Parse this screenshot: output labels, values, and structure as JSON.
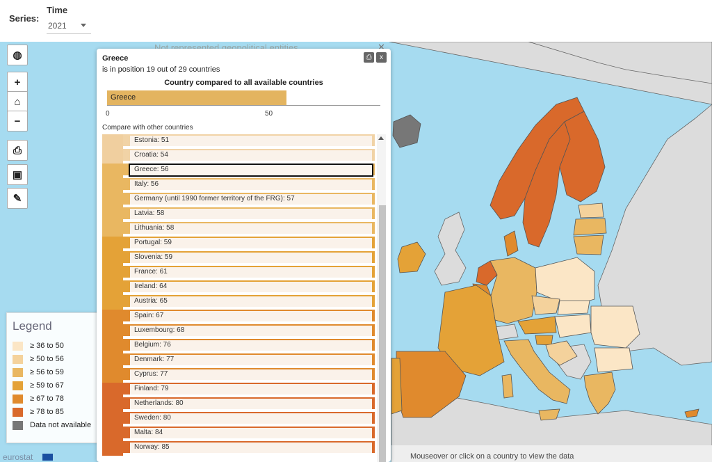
{
  "controls": {
    "series_label": "Series:",
    "time_label": "Time",
    "time_value": "2021"
  },
  "map": {
    "top_note": "Not represented geopolitical entities",
    "footer_note": "Mouseover or click on a country to view the data",
    "brand": "eurostat",
    "colors": {
      "sea": "#a6dbf0",
      "no_data": "#777777",
      "non_eu": "#dcdcdc"
    }
  },
  "tools": [
    {
      "name": "globe-icon",
      "glyph": "◍"
    },
    {
      "name": "zoom-in-icon",
      "glyph": "+"
    },
    {
      "name": "home-icon",
      "glyph": "⌂"
    },
    {
      "name": "zoom-out-icon",
      "glyph": "−"
    },
    {
      "name": "print-icon",
      "glyph": "⎙"
    },
    {
      "name": "image-icon",
      "glyph": "▣"
    },
    {
      "name": "brush-icon",
      "glyph": "✎"
    }
  ],
  "legend": {
    "title": "Legend",
    "items": [
      {
        "label": "≥ 36 to 50",
        "color": "#fbe6c6"
      },
      {
        "label": "≥ 50 to 56",
        "color": "#f4d29c"
      },
      {
        "label": "≥ 56 to 59",
        "color": "#e9b761"
      },
      {
        "label": "≥ 59 to 67",
        "color": "#e4a237"
      },
      {
        "label": "≥ 67 to 78",
        "color": "#e08a2d"
      },
      {
        "label": "≥ 78 to 85",
        "color": "#d9692b"
      },
      {
        "label": "Data not available",
        "color": "#777777"
      }
    ]
  },
  "panel": {
    "title": "Greece",
    "subtitle": "is in position 19 out of 29 countries",
    "compare_title": "Country compared to all available countries",
    "selected_country": "Greece",
    "selected_value": 56,
    "axis_ticks": [
      "0",
      "50"
    ],
    "compare_label": "Compare with other countries",
    "buttons": {
      "print": "⎙",
      "close": "x"
    }
  },
  "ranking": [
    {
      "label": "Estonia: 51",
      "color": "#f0cf9f",
      "bar": "#f1d3a6"
    },
    {
      "label": "Croatia: 54",
      "color": "#f0cf9f",
      "bar": "#f1d3a6"
    },
    {
      "label": "Greece: 56",
      "color": "#e9b761",
      "bar": "#e9b761",
      "selected": true
    },
    {
      "label": "Italy: 56",
      "color": "#e9b761",
      "bar": "#e9b761"
    },
    {
      "label": "Germany (until 1990 former territory of the FRG): 57",
      "color": "#e9b761",
      "bar": "#e9b761"
    },
    {
      "label": "Latvia: 58",
      "color": "#e9b761",
      "bar": "#e9b761"
    },
    {
      "label": "Lithuania: 58",
      "color": "#e9b761",
      "bar": "#e9b761"
    },
    {
      "label": "Portugal: 59",
      "color": "#e4a237",
      "bar": "#e4a237"
    },
    {
      "label": "Slovenia: 59",
      "color": "#e4a237",
      "bar": "#e4a237"
    },
    {
      "label": "France: 61",
      "color": "#e4a237",
      "bar": "#e4a237"
    },
    {
      "label": "Ireland: 64",
      "color": "#e4a237",
      "bar": "#e4a237"
    },
    {
      "label": "Austria: 65",
      "color": "#e4a237",
      "bar": "#e4a237"
    },
    {
      "label": "Spain: 67",
      "color": "#e08a2d",
      "bar": "#e08a2d"
    },
    {
      "label": "Luxembourg: 68",
      "color": "#e08a2d",
      "bar": "#e08a2d"
    },
    {
      "label": "Belgium: 76",
      "color": "#e08a2d",
      "bar": "#e08a2d"
    },
    {
      "label": "Denmark: 77",
      "color": "#e08a2d",
      "bar": "#e08a2d"
    },
    {
      "label": "Cyprus: 77",
      "color": "#e08a2d",
      "bar": "#e08a2d"
    },
    {
      "label": "Finland: 79",
      "color": "#d9692b",
      "bar": "#d9692b"
    },
    {
      "label": "Netherlands: 80",
      "color": "#d9692b",
      "bar": "#d9692b"
    },
    {
      "label": "Sweden: 80",
      "color": "#d9692b",
      "bar": "#d9692b"
    },
    {
      "label": "Malta: 84",
      "color": "#d9692b",
      "bar": "#d9692b"
    },
    {
      "label": "Norway: 85",
      "color": "#d9692b",
      "bar": "#d9692b"
    }
  ]
}
